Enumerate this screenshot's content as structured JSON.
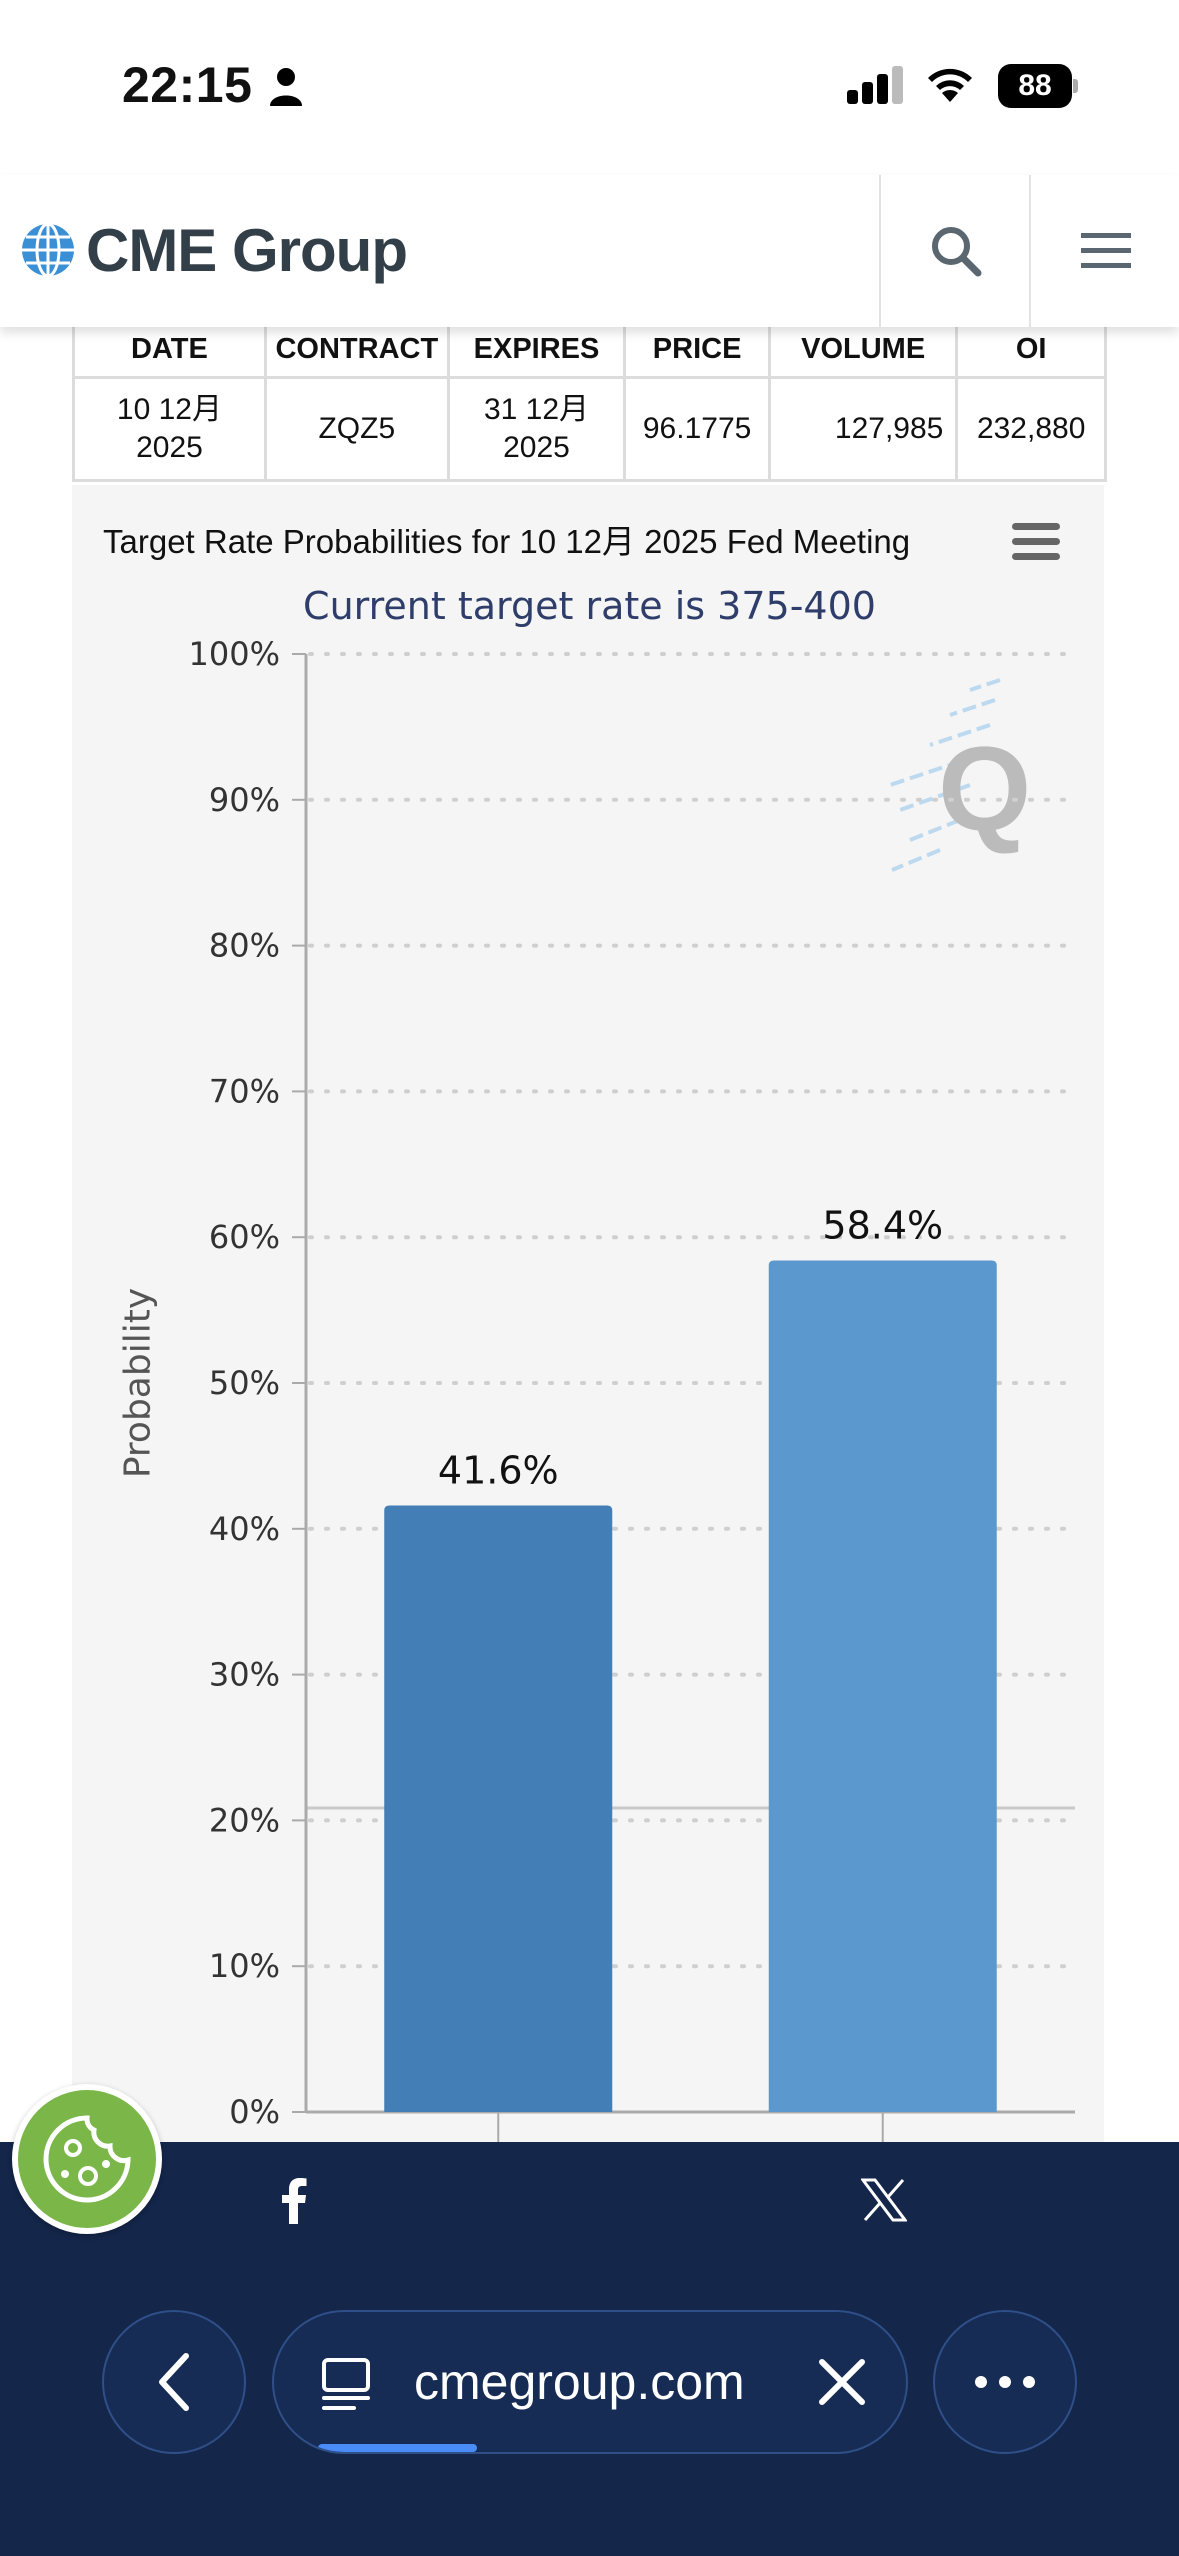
{
  "status_bar": {
    "time": "22:15",
    "battery": "88"
  },
  "header": {
    "logo_text": "CME Group"
  },
  "table": {
    "headers": [
      "DATE",
      "CONTRACT",
      "EXPIRES",
      "PRICE",
      "VOLUME",
      "OI"
    ],
    "row": {
      "date_line1": "10 12月",
      "date_line2": "2025",
      "contract": "ZQZ5",
      "expires_line1": "31 12月",
      "expires_line2": "2025",
      "price": "96.1775",
      "volume": "127,985",
      "oi": "232,880"
    }
  },
  "chart": {
    "title": "Target Rate Probabilities for 10 12月 2025 Fed Meeting",
    "subtitle": "Current target rate is 375-400",
    "ylabel": "Probability"
  },
  "chart_data": {
    "type": "bar",
    "title": "Target Rate Probabilities for 10 12月 2025 Fed Meeting",
    "subtitle": "Current target rate is 375-400",
    "xlabel": "",
    "ylabel": "Probability",
    "ylim": [
      0,
      100
    ],
    "yticks": [
      "0%",
      "10%",
      "20%",
      "30%",
      "40%",
      "50%",
      "60%",
      "70%",
      "80%",
      "90%",
      "100%"
    ],
    "categories": [
      "",
      ""
    ],
    "values": [
      41.6,
      58.4
    ],
    "data_labels": [
      "41.6%",
      "58.4%"
    ],
    "colors": [
      "#437fb6",
      "#5a98cd"
    ],
    "grid": true
  },
  "bottom": {
    "url": "cmegroup.com",
    "load_progress": 0.29
  },
  "colors": {
    "nav_bg": "#14264a",
    "accent": "#4a8cf7",
    "cookie": "#7ab648"
  }
}
